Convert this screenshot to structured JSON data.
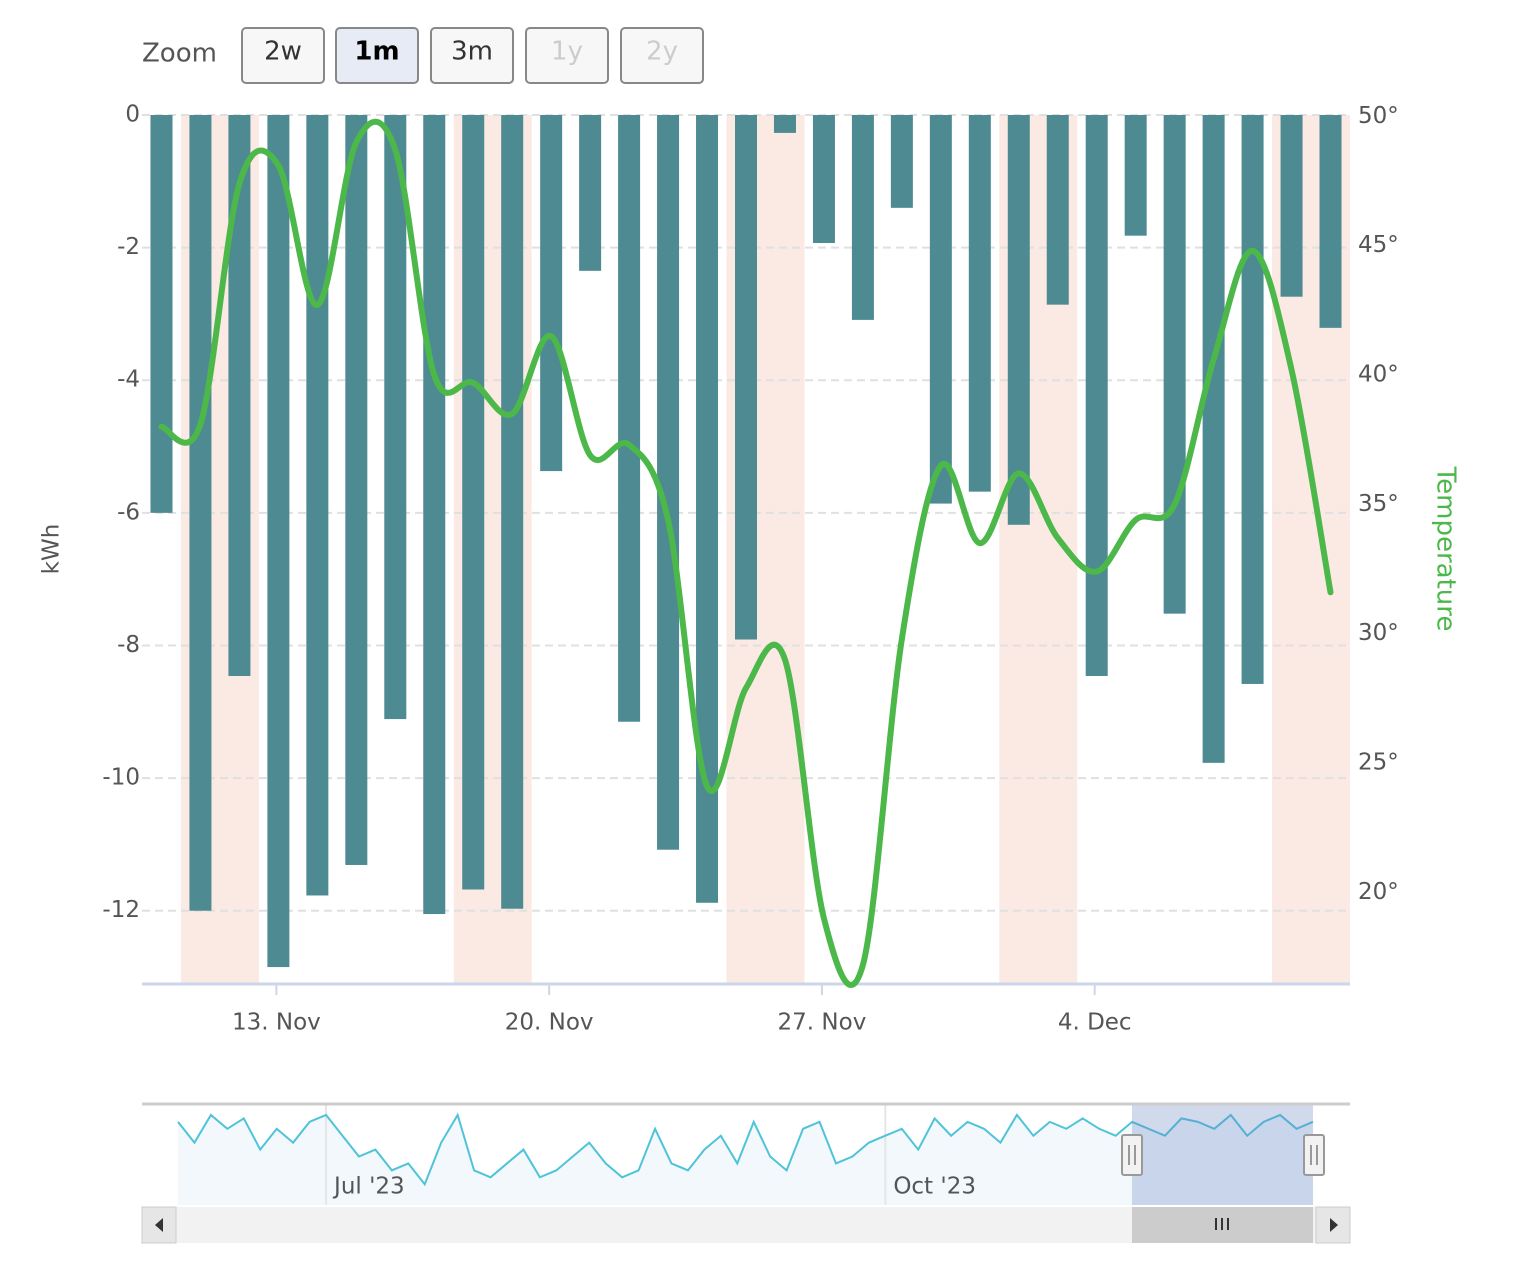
{
  "chart_data": {
    "type": "bar",
    "range_selector": {
      "label": "Zoom",
      "buttons": [
        "2w",
        "1m",
        "3m",
        "1y",
        "2y"
      ],
      "selected_index": 1,
      "disabled": [
        3,
        4
      ]
    },
    "ylabel": "kWh",
    "y2label": "Temperature",
    "categories": [
      null,
      null,
      null,
      "13. Nov",
      null,
      null,
      null,
      null,
      null,
      null,
      "20. Nov",
      null,
      null,
      null,
      null,
      null,
      null,
      "27. Nov",
      null,
      null,
      null,
      null,
      null,
      null,
      "4. Dec",
      null,
      null,
      null,
      null,
      null,
      null
    ],
    "ylim": [
      -13.09,
      0
    ],
    "yticks": [
      0,
      -2,
      -4,
      -6,
      -8,
      -10,
      -12
    ],
    "y2lim": [
      16.5,
      50.05
    ],
    "y2ticks": [
      {
        "value": 50,
        "label": "50°"
      },
      {
        "value": 45,
        "label": "45°"
      },
      {
        "value": 40,
        "label": "40°"
      },
      {
        "value": 35,
        "label": "35°"
      },
      {
        "value": 30,
        "label": "30°"
      },
      {
        "value": 25,
        "label": "25°"
      },
      {
        "value": 20,
        "label": "20°"
      }
    ],
    "grid": true,
    "series": [
      {
        "type": "bar",
        "color": "#4d8a91",
        "values": [
          -6.0,
          -12.0,
          -8.46,
          -12.85,
          -11.77,
          -11.31,
          -9.11,
          -12.05,
          -11.68,
          -11.97,
          -5.37,
          -2.35,
          -9.15,
          -11.08,
          -11.88,
          -7.91,
          -0.27,
          -1.93,
          -3.09,
          -1.4,
          -5.86,
          -5.68,
          -6.18,
          -2.86,
          -8.46,
          -1.82,
          -7.52,
          -9.77,
          -8.58,
          -2.74,
          -3.21
        ]
      },
      {
        "type": "line",
        "axis": "y2",
        "color": "#4cb84a",
        "values": [
          38.0,
          38.1,
          47.4,
          48.1,
          42.7,
          49.0,
          48.7,
          40.0,
          39.7,
          38.5,
          41.5,
          36.9,
          37.3,
          34.4,
          24.1,
          27.9,
          29.0,
          19.0,
          17.2,
          29.8,
          36.5,
          33.5,
          36.2,
          33.7,
          32.4,
          34.4,
          35.0,
          40.6,
          44.8,
          40.2,
          31.6
        ]
      }
    ],
    "navigator": {
      "color": "#4fc3d8",
      "xlim": [
        0,
        69
      ],
      "ylim": [
        -14,
        0
      ],
      "xticks": [
        {
          "value": 9,
          "label": "Jul '23"
        },
        {
          "value": 43,
          "label": "Oct '23"
        }
      ],
      "values": [
        -2,
        -5,
        -1,
        -3,
        -1.5,
        -6,
        -3,
        -5,
        -2,
        -1,
        -4,
        -7,
        -6,
        -9,
        -8,
        -11,
        -5,
        -1,
        -9,
        -10,
        -8,
        -6,
        -10,
        -9,
        -7,
        -5,
        -8,
        -10,
        -9,
        -3,
        -8,
        -9,
        -6,
        -4,
        -8,
        -2,
        -7,
        -9,
        -3,
        -2,
        -8,
        -7,
        -5,
        -4,
        -3,
        -6,
        -1.5,
        -4,
        -2,
        -3,
        -5,
        -1,
        -4,
        -2,
        -3,
        -1.5,
        -3,
        -4,
        -2,
        -3,
        -4,
        -1.5,
        -2,
        -3,
        -1,
        -4,
        -2,
        -1,
        -3,
        -2
      ]
    }
  }
}
